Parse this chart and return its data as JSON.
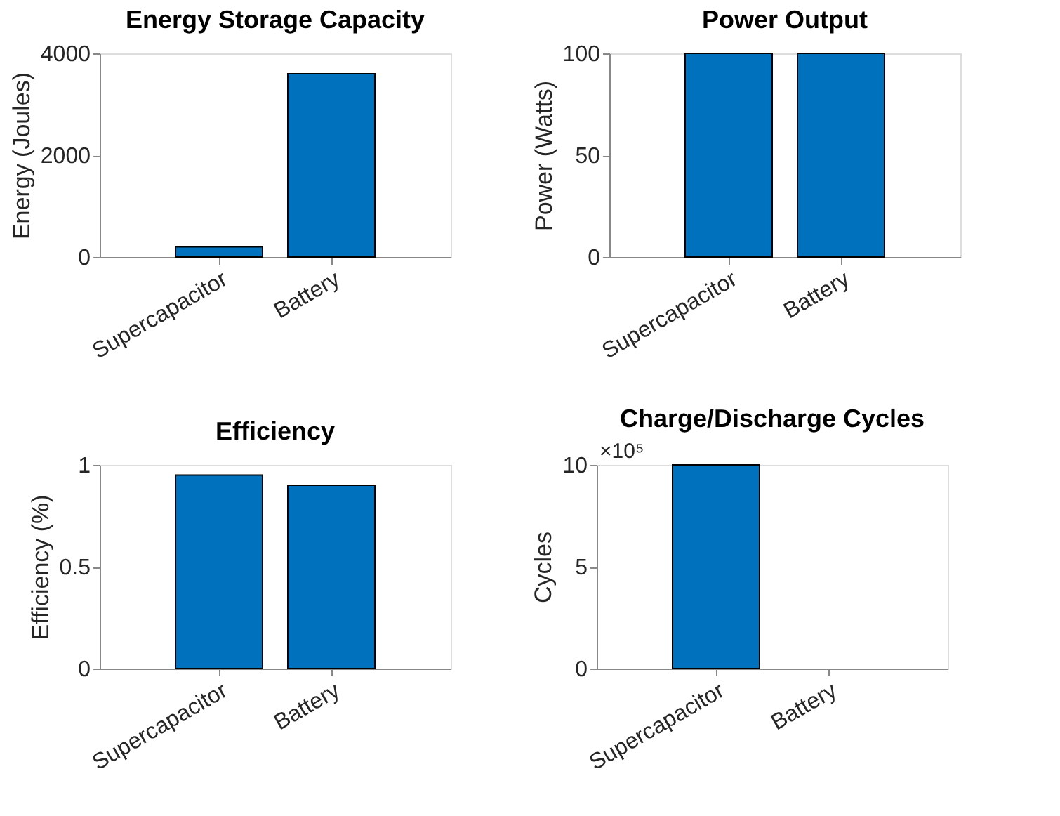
{
  "chart_data": [
    {
      "type": "bar",
      "title": "Energy Storage Capacity",
      "ylabel": "Energy (Joules)",
      "categories": [
        "Supercapacitor",
        "Battery"
      ],
      "values": [
        200,
        3600
      ],
      "color": "#0072bd",
      "ylim": [
        0,
        4000
      ],
      "yticks": [
        0,
        2000,
        4000
      ],
      "grid": false
    },
    {
      "type": "bar",
      "title": "Power Output",
      "ylabel": "Power (Watts)",
      "categories": [
        "Supercapacitor",
        "Battery"
      ],
      "values": [
        100,
        100
      ],
      "color": "#0072bd",
      "ylim": [
        0,
        100
      ],
      "yticks": [
        0,
        50,
        100
      ],
      "grid": false
    },
    {
      "type": "bar",
      "title": "Efficiency",
      "ylabel": "Efficiency (%)",
      "categories": [
        "Supercapacitor",
        "Battery"
      ],
      "values": [
        0.95,
        0.9
      ],
      "color": "#0072bd",
      "ylim": [
        0,
        1
      ],
      "yticks": [
        0,
        0.5,
        1
      ],
      "grid": false
    },
    {
      "type": "bar",
      "title": "Charge/Discharge Cycles",
      "ylabel": "Cycles",
      "categories": [
        "Supercapacitor",
        "Battery"
      ],
      "values": [
        10,
        null
      ],
      "color": "#0072bd",
      "ylim": [
        0,
        10
      ],
      "yticks": [
        0,
        5,
        10
      ],
      "annotations": [
        "×10⁵"
      ],
      "grid": false
    }
  ]
}
